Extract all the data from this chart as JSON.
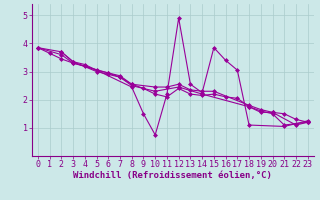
{
  "title": "",
  "xlabel": "Windchill (Refroidissement éolien,°C)",
  "background_color": "#cce8e8",
  "grid_color": "#aacccc",
  "line_color": "#990099",
  "spine_color": "#880088",
  "tick_color": "#880088",
  "label_color": "#880088",
  "xlim": [
    -0.5,
    23.5
  ],
  "ylim": [
    0,
    5.4
  ],
  "xticks": [
    0,
    1,
    2,
    3,
    4,
    5,
    6,
    7,
    8,
    9,
    10,
    11,
    12,
    13,
    14,
    15,
    16,
    17,
    18,
    19,
    20,
    21,
    22,
    23
  ],
  "yticks": [
    1,
    2,
    3,
    4,
    5
  ],
  "series": [
    [
      0,
      3.85
    ],
    [
      1,
      3.65
    ],
    [
      2,
      3.45
    ],
    [
      3,
      3.3
    ],
    [
      4,
      3.2
    ],
    [
      5,
      3.05
    ],
    [
      6,
      2.95
    ],
    [
      7,
      2.85
    ],
    [
      8,
      2.55
    ],
    [
      9,
      2.4
    ],
    [
      10,
      2.2
    ],
    [
      11,
      2.1
    ],
    [
      12,
      2.4
    ],
    [
      13,
      2.2
    ],
    [
      14,
      2.15
    ],
    [
      15,
      2.2
    ],
    [
      16,
      2.1
    ],
    [
      17,
      2.05
    ],
    [
      18,
      1.75
    ],
    [
      19,
      1.6
    ],
    [
      20,
      1.5
    ],
    [
      21,
      1.1
    ],
    [
      22,
      1.15
    ],
    [
      23,
      1.2
    ]
  ],
  "series2": [
    [
      2,
      3.7
    ],
    [
      3,
      3.35
    ],
    [
      4,
      3.25
    ],
    [
      8,
      2.45
    ],
    [
      9,
      1.5
    ],
    [
      10,
      0.75
    ],
    [
      11,
      2.2
    ],
    [
      12,
      4.9
    ],
    [
      13,
      2.55
    ],
    [
      14,
      2.25
    ],
    [
      15,
      3.85
    ],
    [
      16,
      3.4
    ],
    [
      17,
      3.05
    ],
    [
      18,
      1.1
    ],
    [
      21,
      1.05
    ],
    [
      23,
      1.25
    ]
  ],
  "series3": [
    [
      0,
      3.85
    ],
    [
      2,
      3.7
    ],
    [
      3,
      3.35
    ],
    [
      5,
      3.0
    ],
    [
      6,
      2.9
    ],
    [
      7,
      2.8
    ],
    [
      8,
      2.55
    ],
    [
      10,
      2.45
    ],
    [
      11,
      2.45
    ],
    [
      12,
      2.55
    ],
    [
      13,
      2.35
    ],
    [
      14,
      2.3
    ],
    [
      15,
      2.3
    ],
    [
      18,
      1.8
    ],
    [
      19,
      1.65
    ],
    [
      20,
      1.55
    ],
    [
      21,
      1.5
    ],
    [
      22,
      1.3
    ],
    [
      23,
      1.2
    ]
  ],
  "series4": [
    [
      0,
      3.85
    ],
    [
      2,
      3.6
    ],
    [
      3,
      3.3
    ],
    [
      6,
      2.95
    ],
    [
      7,
      2.8
    ],
    [
      8,
      2.5
    ],
    [
      10,
      2.3
    ],
    [
      12,
      2.45
    ],
    [
      14,
      2.2
    ],
    [
      18,
      1.75
    ],
    [
      19,
      1.55
    ],
    [
      20,
      1.55
    ],
    [
      22,
      1.1
    ],
    [
      23,
      1.2
    ]
  ],
  "marker": "D",
  "markersize": 2.0,
  "linewidth": 0.8,
  "xlabel_fontsize": 6.5,
  "tick_fontsize": 6,
  "figsize": [
    3.2,
    2.0
  ],
  "dpi": 100
}
